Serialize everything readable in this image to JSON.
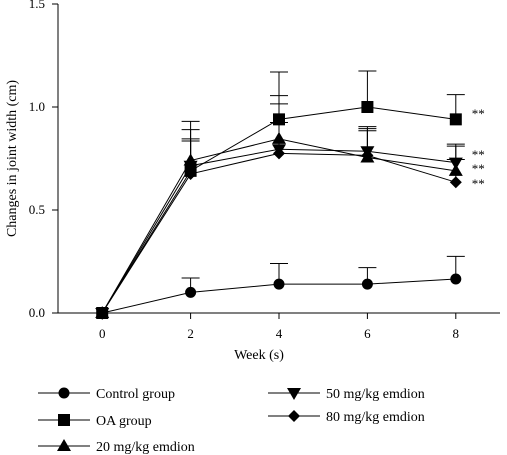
{
  "chart_data": {
    "type": "line",
    "title": "",
    "xlabel": "Week (s)",
    "ylabel": "Changes in joint width (cm)",
    "x": [
      0,
      2,
      4,
      6,
      8
    ],
    "xlim": [
      -1,
      9
    ],
    "ylim": [
      0,
      1.5
    ],
    "x_ticks": [
      0,
      2,
      4,
      6,
      8
    ],
    "y_ticks": [
      0.0,
      0.5,
      1.0,
      1.5
    ],
    "y_tick_labels": [
      "0.0",
      "0.5",
      "1.0",
      "1.5"
    ],
    "grid": false,
    "legend_position": "bottom",
    "series": [
      {
        "name": "Control group",
        "marker": "circle",
        "values": [
          0.0,
          0.1,
          0.14,
          0.14,
          0.165
        ],
        "error": [
          0,
          0.07,
          0.1,
          0.08,
          0.11
        ],
        "significance": [
          "",
          "",
          "",
          "",
          ""
        ]
      },
      {
        "name": "OA group",
        "marker": "square",
        "values": [
          0.0,
          0.69,
          0.94,
          1.0,
          0.94
        ],
        "error": [
          0,
          0.24,
          0.23,
          0.175,
          0.12
        ],
        "significance": [
          "",
          "",
          "",
          "",
          "**"
        ]
      },
      {
        "name": "20 mg/kg emdion",
        "marker": "triangle-up",
        "values": [
          0.0,
          0.74,
          0.845,
          0.755,
          0.69
        ],
        "error": [
          0,
          0.15,
          0.17,
          0.15,
          0.13
        ],
        "significance": [
          "",
          "",
          "",
          "",
          "**"
        ]
      },
      {
        "name": "50 mg/kg emdion",
        "marker": "triangle-down",
        "values": [
          0.0,
          0.715,
          0.795,
          0.785,
          0.73
        ],
        "error": [
          0,
          0.13,
          0.26,
          0.11,
          0.08
        ],
        "significance": [
          "",
          "",
          "",
          "",
          "**"
        ]
      },
      {
        "name": "80 mg/kg emdion",
        "marker": "diamond",
        "values": [
          0.0,
          0.675,
          0.775,
          0.765,
          0.635
        ],
        "error": [
          0,
          0.16,
          0.15,
          0.12,
          0.11
        ],
        "significance": [
          "",
          "",
          "",
          "",
          "**"
        ]
      }
    ]
  }
}
